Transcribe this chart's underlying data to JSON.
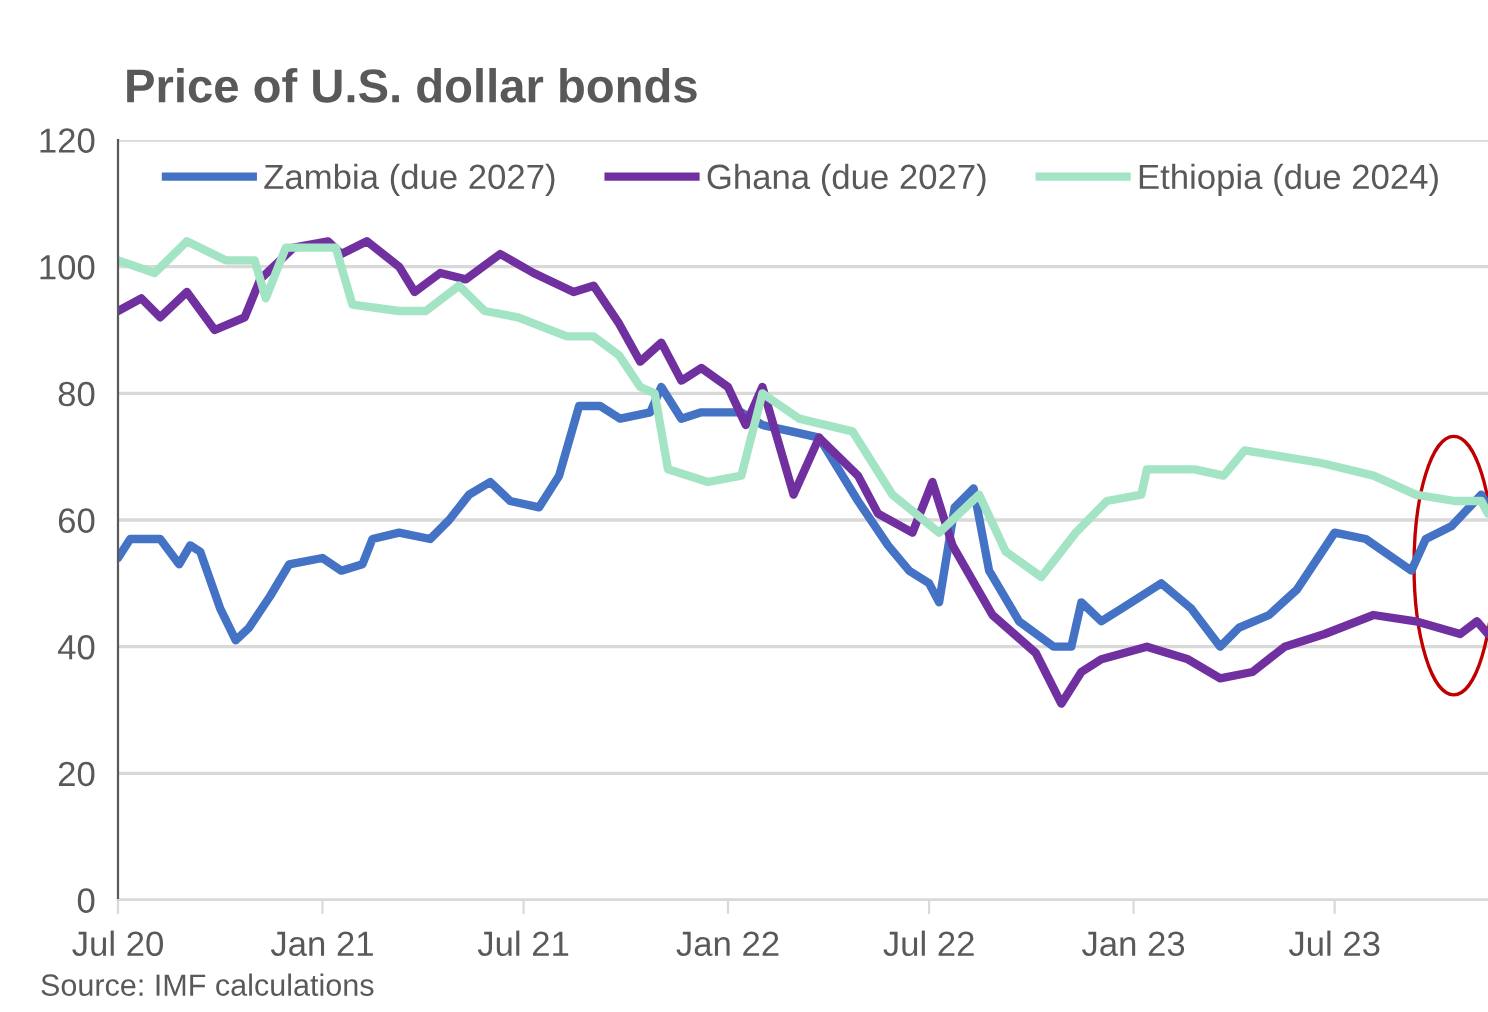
{
  "chart_data": {
    "type": "line",
    "title": "Price of U.S. dollar bonds",
    "annotations": [
      "Source: IMF calculations"
    ],
    "xlim": [
      "2020-07-01",
      "2023-11-16"
    ],
    "xticks": [
      {
        "value": "2020-07-01",
        "label": "Jul 20"
      },
      {
        "value": "2021-01-01",
        "label": "Jan 21"
      },
      {
        "value": "2021-07-01",
        "label": "Jul 21"
      },
      {
        "value": "2022-01-01",
        "label": "Jan 22"
      },
      {
        "value": "2022-07-01",
        "label": "Jul 22"
      },
      {
        "value": "2023-01-01",
        "label": "Jan 23"
      },
      {
        "value": "2023-07-01",
        "label": "Jul 23"
      }
    ],
    "ylim": [
      0,
      120
    ],
    "yticks": [
      0,
      20,
      40,
      60,
      80,
      100,
      120
    ],
    "grid": "y",
    "legend": "top",
    "line_style": "solid",
    "marker": "none",
    "series": [
      {
        "name": "Zambia (due 2027)",
        "color": "#4472c4",
        "x": [
          "2020-07-01",
          "2020-07-12",
          "2020-08-08",
          "2020-08-25",
          "2020-09-04",
          "2020-09-13",
          "2020-10-01",
          "2020-10-15",
          "2020-10-27",
          "2020-11-15",
          "2020-12-02",
          "2021-01-01",
          "2021-01-18",
          "2021-02-06",
          "2021-02-15",
          "2021-03-11",
          "2021-04-08",
          "2021-04-25",
          "2021-05-13",
          "2021-06-01",
          "2021-06-19",
          "2021-07-15",
          "2021-08-02",
          "2021-08-20",
          "2021-09-08",
          "2021-09-26",
          "2021-10-23",
          "2021-11-02",
          "2021-11-20",
          "2021-12-08",
          "2022-01-13",
          "2022-02-01",
          "2022-02-27",
          "2022-03-24",
          "2022-04-28",
          "2022-05-25",
          "2022-06-13",
          "2022-07-01",
          "2022-07-10",
          "2022-07-24",
          "2022-08-10",
          "2022-08-24",
          "2022-09-20",
          "2022-10-21",
          "2022-11-06",
          "2022-11-15",
          "2022-12-03",
          "2022-12-21",
          "2023-01-26",
          "2023-02-22",
          "2023-03-20",
          "2023-04-06",
          "2023-05-03",
          "2023-05-28",
          "2023-07-01",
          "2023-07-29",
          "2023-09-08",
          "2023-09-21",
          "2023-10-14",
          "2023-11-10",
          "2023-11-16"
        ],
        "values": [
          54,
          57,
          57,
          53,
          56,
          55,
          46,
          41,
          43,
          48,
          53,
          54,
          52,
          53,
          57,
          58,
          57,
          60,
          64,
          66,
          63,
          62,
          67,
          78,
          78,
          76,
          77,
          81,
          76,
          77,
          77,
          75,
          74,
          73,
          63,
          56,
          52,
          50,
          47,
          62,
          65,
          52,
          44,
          40,
          40,
          47,
          44,
          46,
          50,
          46,
          40,
          43,
          45,
          49,
          58,
          57,
          52,
          57,
          59,
          64,
          62
        ]
      },
      {
        "name": "Ghana (due 2027)",
        "color": "#7030a0",
        "x": [
          "2020-07-01",
          "2020-07-22",
          "2020-08-08",
          "2020-09-01",
          "2020-09-26",
          "2020-10-23",
          "2020-11-06",
          "2020-12-06",
          "2021-01-06",
          "2021-01-18",
          "2021-02-10",
          "2021-03-11",
          "2021-03-25",
          "2021-04-17",
          "2021-05-10",
          "2021-06-10",
          "2021-07-10",
          "2021-08-15",
          "2021-09-02",
          "2021-09-25",
          "2021-10-14",
          "2021-11-02",
          "2021-11-20",
          "2021-12-08",
          "2022-01-01",
          "2022-01-17",
          "2022-02-01",
          "2022-03-01",
          "2022-03-24",
          "2022-04-28",
          "2022-05-16",
          "2022-06-16",
          "2022-07-04",
          "2022-07-22",
          "2022-08-27",
          "2022-10-05",
          "2022-10-28",
          "2022-11-15",
          "2022-12-03",
          "2023-01-13",
          "2023-02-19",
          "2023-03-20",
          "2023-04-18",
          "2023-05-17",
          "2023-06-22",
          "2023-08-05",
          "2023-09-12",
          "2023-10-22",
          "2023-11-06",
          "2023-11-16"
        ],
        "values": [
          93,
          95,
          92,
          96,
          90,
          92,
          98,
          103,
          104,
          102,
          104,
          100,
          96,
          99,
          98,
          102,
          99,
          96,
          97,
          91,
          85,
          88,
          82,
          84,
          81,
          75,
          81,
          64,
          73,
          67,
          61,
          58,
          66,
          56,
          45,
          39,
          31,
          36,
          38,
          40,
          38,
          35,
          36,
          40,
          42,
          45,
          44,
          42,
          44,
          42
        ]
      },
      {
        "name": "Ethiopia (due 2024)",
        "color": "#a3e4c4",
        "x": [
          "2020-07-01",
          "2020-08-03",
          "2020-09-01",
          "2020-10-06",
          "2020-11-01",
          "2020-11-11",
          "2020-11-29",
          "2021-01-13",
          "2021-01-28",
          "2021-03-11",
          "2021-04-04",
          "2021-05-04",
          "2021-05-27",
          "2021-06-26",
          "2021-08-09",
          "2021-09-02",
          "2021-09-25",
          "2021-10-14",
          "2021-10-27",
          "2021-11-08",
          "2021-12-14",
          "2022-01-13",
          "2022-02-01",
          "2022-03-06",
          "2022-04-23",
          "2022-05-29",
          "2022-07-10",
          "2022-08-15",
          "2022-09-08",
          "2022-10-10",
          "2022-11-10",
          "2022-12-08",
          "2023-01-08",
          "2023-01-13",
          "2023-02-25",
          "2023-03-23",
          "2023-04-11",
          "2023-06-19",
          "2023-08-05",
          "2023-09-12",
          "2023-10-17",
          "2023-11-10",
          "2023-11-16"
        ],
        "values": [
          101,
          99,
          104,
          101,
          101,
          95,
          103,
          103,
          94,
          93,
          93,
          97,
          93,
          92,
          89,
          89,
          86,
          81,
          80,
          68,
          66,
          67,
          80,
          76,
          74,
          64,
          58,
          64,
          55,
          51,
          58,
          63,
          64,
          68,
          68,
          67,
          71,
          69,
          67,
          64,
          63,
          63,
          61
        ]
      }
    ]
  }
}
